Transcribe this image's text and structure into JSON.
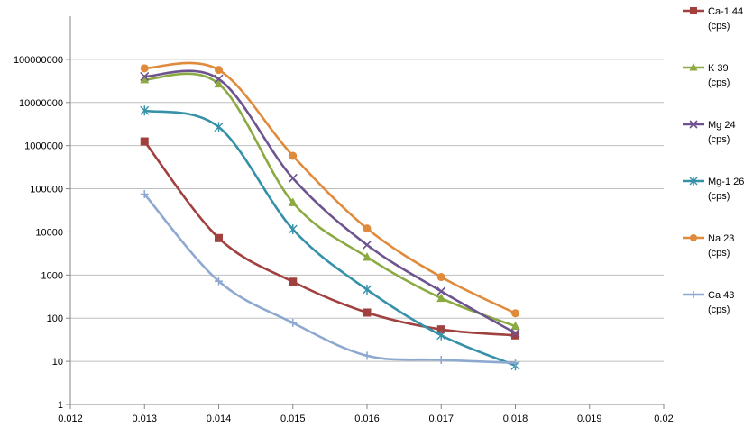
{
  "chart_data": {
    "type": "line",
    "title": "",
    "xlabel": "",
    "ylabel": "",
    "x_axis": {
      "min": 0.012,
      "max": 0.02,
      "ticks": [
        0.012,
        0.013,
        0.014,
        0.015,
        0.016,
        0.017,
        0.018,
        0.019,
        0.02
      ],
      "tick_labels": [
        "0.012",
        "0.013",
        "0.014",
        "0.015",
        "0.016",
        "0.017",
        "0.018",
        "0.019",
        "0.02"
      ]
    },
    "y_axis": {
      "scale": "log",
      "min": 1,
      "max": 1000000000,
      "ticks": [
        1,
        10,
        100,
        1000,
        10000,
        100000,
        1000000,
        10000000,
        100000000
      ],
      "tick_labels": [
        "1",
        "10",
        "100",
        "1000",
        "10000",
        "100000",
        "1000000",
        "10000000",
        "100000000"
      ]
    },
    "grid": "horizontal",
    "legend_position": "right",
    "smooth": true,
    "series": [
      {
        "name": "Ca-1 44",
        "unit": "(cps)",
        "color": "#A0403F",
        "marker": "square",
        "x": [
          0.013,
          0.014,
          0.015,
          0.016,
          0.017,
          0.018
        ],
        "y": [
          1250000,
          7200,
          700,
          135,
          55,
          40
        ]
      },
      {
        "name": "K 39",
        "unit": "(cps)",
        "color": "#8CAA42",
        "marker": "triangle",
        "x": [
          0.013,
          0.014,
          0.015,
          0.016,
          0.017,
          0.018
        ],
        "y": [
          34000000,
          27000000,
          48000,
          2600,
          290,
          65
        ]
      },
      {
        "name": "Mg 24",
        "unit": "(cps)",
        "color": "#6E548F",
        "marker": "x",
        "x": [
          0.013,
          0.014,
          0.015,
          0.016,
          0.017,
          0.018
        ],
        "y": [
          40000000,
          35000000,
          175000,
          5000,
          420,
          45
        ]
      },
      {
        "name": "Mg-1 26",
        "unit": "(cps)",
        "color": "#3591A8",
        "marker": "star",
        "x": [
          0.013,
          0.014,
          0.015,
          0.016,
          0.017,
          0.018
        ],
        "y": [
          6500000,
          2700000,
          11500,
          460,
          40,
          8
        ]
      },
      {
        "name": "Na 23",
        "unit": "(cps)",
        "color": "#E08A3C",
        "marker": "circle",
        "x": [
          0.013,
          0.014,
          0.015,
          0.016,
          0.017,
          0.018
        ],
        "y": [
          62000000,
          57000000,
          580000,
          12000,
          900,
          130
        ]
      },
      {
        "name": "Ca 43",
        "unit": "(cps)",
        "color": "#8EA9D0",
        "marker": "plus",
        "x": [
          0.013,
          0.014,
          0.015,
          0.016,
          0.017,
          0.018
        ],
        "y": [
          75000,
          720,
          78,
          13.5,
          10.8,
          9.2
        ]
      }
    ]
  }
}
